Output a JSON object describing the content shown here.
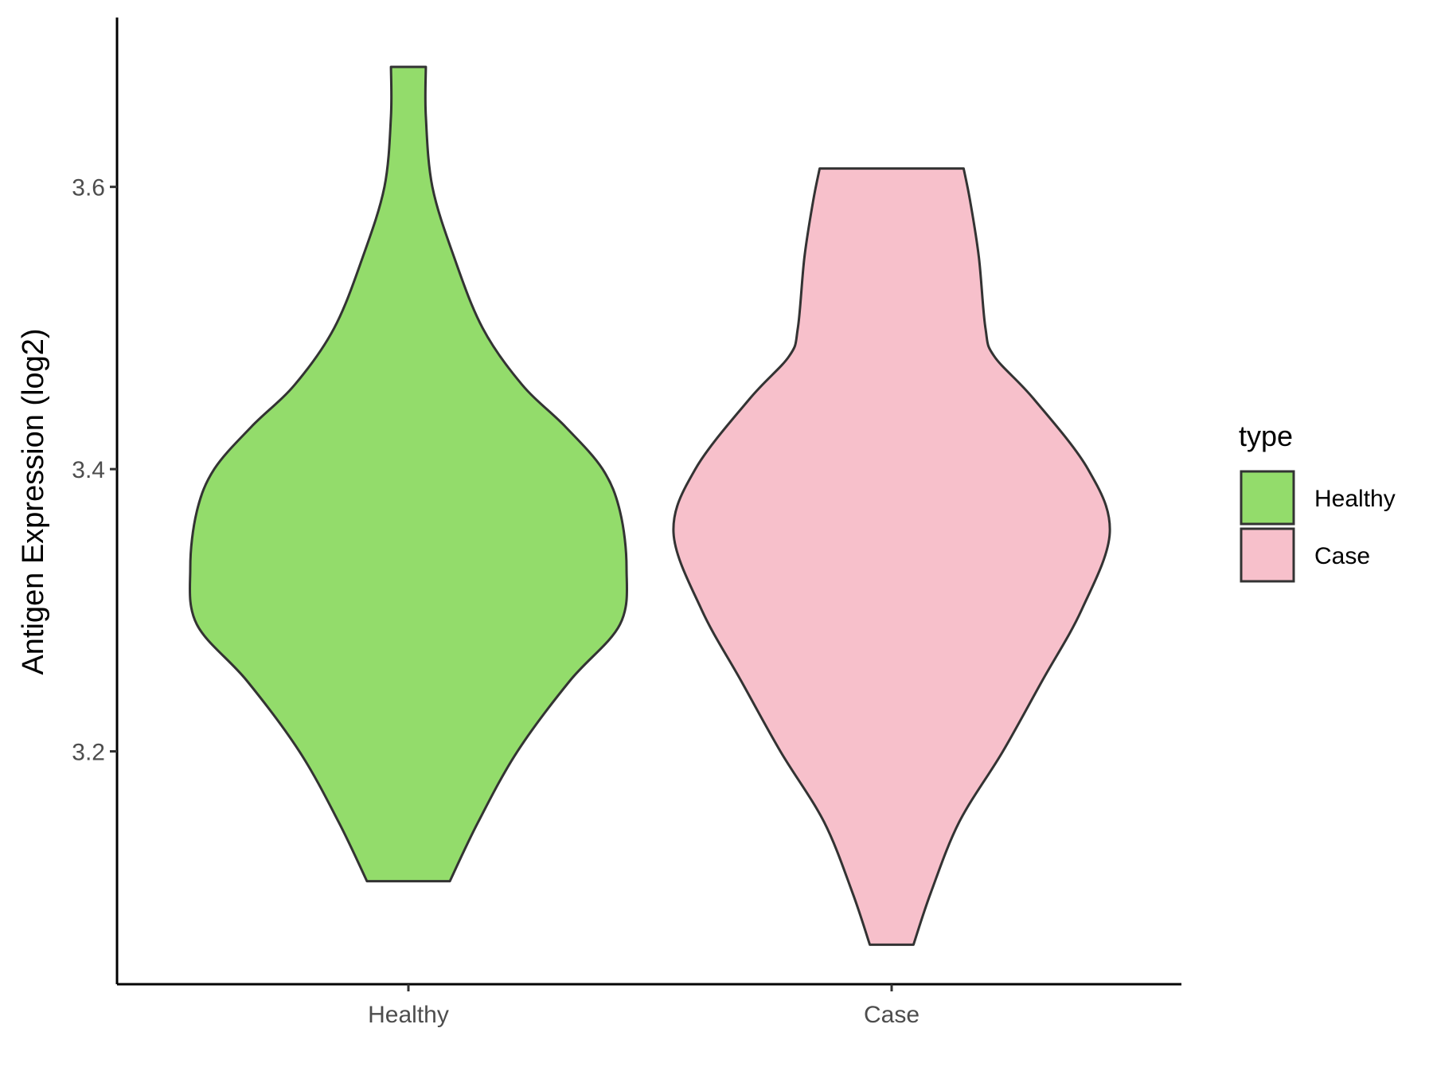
{
  "chart_data": {
    "type": "violin",
    "categories": [
      "Healthy",
      "Case"
    ],
    "ylabel": "Antigen Expression (log2)",
    "xlabel": "",
    "ylim": [
      3.035,
      3.72
    ],
    "yticks": [
      3.2,
      3.4,
      3.6
    ],
    "ytick_labels": [
      "3.2",
      "3.4",
      "3.6"
    ],
    "legend": {
      "title": "type",
      "position": "right",
      "entries": [
        {
          "label": "Healthy",
          "color": "#93DC6B"
        },
        {
          "label": "Case",
          "color": "#F7C0CB"
        }
      ]
    },
    "series": [
      {
        "name": "Healthy",
        "color": "#93DC6B",
        "y_min": 3.108,
        "y_max": 3.685,
        "density_profile": [
          [
            3.108,
            0.19
          ],
          [
            3.15,
            0.32
          ],
          [
            3.2,
            0.5
          ],
          [
            3.25,
            0.74
          ],
          [
            3.29,
            0.97
          ],
          [
            3.33,
            1.0
          ],
          [
            3.37,
            0.97
          ],
          [
            3.4,
            0.89
          ],
          [
            3.43,
            0.72
          ],
          [
            3.46,
            0.52
          ],
          [
            3.5,
            0.34
          ],
          [
            3.55,
            0.21
          ],
          [
            3.6,
            0.11
          ],
          [
            3.65,
            0.08
          ],
          [
            3.685,
            0.08
          ]
        ]
      },
      {
        "name": "Case",
        "color": "#F7C0CB",
        "y_min": 3.063,
        "y_max": 3.613,
        "density_profile": [
          [
            3.063,
            0.1
          ],
          [
            3.1,
            0.18
          ],
          [
            3.15,
            0.31
          ],
          [
            3.2,
            0.51
          ],
          [
            3.25,
            0.69
          ],
          [
            3.3,
            0.87
          ],
          [
            3.355,
            1.0
          ],
          [
            3.4,
            0.9
          ],
          [
            3.45,
            0.65
          ],
          [
            3.48,
            0.47
          ],
          [
            3.5,
            0.43
          ],
          [
            3.55,
            0.4
          ],
          [
            3.59,
            0.36
          ],
          [
            3.613,
            0.33
          ]
        ]
      }
    ]
  }
}
